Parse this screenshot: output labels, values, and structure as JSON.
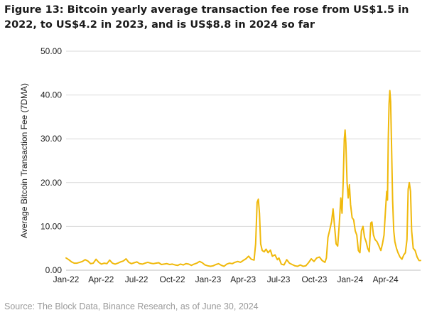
{
  "figure": {
    "title": "Figure 13: Bitcoin yearly average transaction fee rose from US$1.5 in 2022, to US$4.2 in 2023, and is US$8.8 in 2024 so far",
    "source": "Source: The Block Data, Binance Research, as of June 30, 2024"
  },
  "chart_data": {
    "type": "line",
    "title": "",
    "xlabel": "",
    "ylabel": "Average Bitcoin Transaction Fee (7DMA)",
    "ylim": [
      0,
      50
    ],
    "yticks": [
      "0.00",
      "10.00",
      "20.00",
      "30.00",
      "40.00",
      "50.00"
    ],
    "xticks": [
      "Jan-22",
      "Apr-22",
      "Jul-22",
      "Oct-22",
      "Jan-23",
      "Apr-23",
      "Jul-23",
      "Oct-23",
      "Jan-24",
      "Apr-24"
    ],
    "xtick_dates": [
      "2022-01-01",
      "2022-04-01",
      "2022-07-01",
      "2022-10-01",
      "2023-01-01",
      "2023-04-01",
      "2023-07-01",
      "2023-10-01",
      "2024-01-01",
      "2024-04-01"
    ],
    "xlim": [
      "2022-01-01",
      "2024-06-30"
    ],
    "grid": "horizontal",
    "color": "#f0b90b",
    "series": [
      {
        "name": "",
        "points": [
          [
            "2022-01-01",
            2.8
          ],
          [
            "2022-01-08",
            2.4
          ],
          [
            "2022-01-15",
            1.9
          ],
          [
            "2022-01-22",
            1.6
          ],
          [
            "2022-01-29",
            1.6
          ],
          [
            "2022-02-05",
            1.8
          ],
          [
            "2022-02-12",
            2.0
          ],
          [
            "2022-02-19",
            2.4
          ],
          [
            "2022-02-26",
            2.1
          ],
          [
            "2022-03-05",
            1.5
          ],
          [
            "2022-03-12",
            1.6
          ],
          [
            "2022-03-19",
            2.5
          ],
          [
            "2022-03-26",
            1.8
          ],
          [
            "2022-04-02",
            1.4
          ],
          [
            "2022-04-09",
            1.6
          ],
          [
            "2022-04-16",
            1.5
          ],
          [
            "2022-04-23",
            2.3
          ],
          [
            "2022-04-30",
            1.6
          ],
          [
            "2022-05-07",
            1.4
          ],
          [
            "2022-05-14",
            1.6
          ],
          [
            "2022-05-21",
            1.9
          ],
          [
            "2022-05-28",
            2.1
          ],
          [
            "2022-06-04",
            2.6
          ],
          [
            "2022-06-11",
            1.8
          ],
          [
            "2022-06-18",
            1.5
          ],
          [
            "2022-06-25",
            1.7
          ],
          [
            "2022-07-02",
            1.9
          ],
          [
            "2022-07-09",
            1.5
          ],
          [
            "2022-07-16",
            1.4
          ],
          [
            "2022-07-23",
            1.6
          ],
          [
            "2022-07-30",
            1.8
          ],
          [
            "2022-08-06",
            1.6
          ],
          [
            "2022-08-13",
            1.5
          ],
          [
            "2022-08-20",
            1.6
          ],
          [
            "2022-08-27",
            1.7
          ],
          [
            "2022-09-03",
            1.3
          ],
          [
            "2022-09-10",
            1.4
          ],
          [
            "2022-09-17",
            1.5
          ],
          [
            "2022-09-24",
            1.3
          ],
          [
            "2022-10-01",
            1.4
          ],
          [
            "2022-10-08",
            1.2
          ],
          [
            "2022-10-15",
            1.1
          ],
          [
            "2022-10-22",
            1.4
          ],
          [
            "2022-10-29",
            1.2
          ],
          [
            "2022-11-05",
            1.5
          ],
          [
            "2022-11-12",
            1.4
          ],
          [
            "2022-11-19",
            1.1
          ],
          [
            "2022-11-26",
            1.4
          ],
          [
            "2022-12-03",
            1.6
          ],
          [
            "2022-12-10",
            2.0
          ],
          [
            "2022-12-17",
            1.7
          ],
          [
            "2022-12-24",
            1.2
          ],
          [
            "2022-12-31",
            1.0
          ],
          [
            "2023-01-07",
            0.9
          ],
          [
            "2023-01-14",
            1.0
          ],
          [
            "2023-01-21",
            1.3
          ],
          [
            "2023-01-28",
            1.5
          ],
          [
            "2023-02-04",
            1.1
          ],
          [
            "2023-02-11",
            0.9
          ],
          [
            "2023-02-18",
            1.4
          ],
          [
            "2023-02-25",
            1.6
          ],
          [
            "2023-03-04",
            1.5
          ],
          [
            "2023-03-11",
            1.8
          ],
          [
            "2023-03-18",
            2.0
          ],
          [
            "2023-03-25",
            1.8
          ],
          [
            "2023-04-01",
            2.2
          ],
          [
            "2023-04-08",
            2.6
          ],
          [
            "2023-04-15",
            3.2
          ],
          [
            "2023-04-22",
            2.5
          ],
          [
            "2023-04-29",
            2.3
          ],
          [
            "2023-05-03",
            6.0
          ],
          [
            "2023-05-07",
            15.5
          ],
          [
            "2023-05-10",
            16.2
          ],
          [
            "2023-05-13",
            13.0
          ],
          [
            "2023-05-16",
            6.0
          ],
          [
            "2023-05-20",
            4.5
          ],
          [
            "2023-05-25",
            4.2
          ],
          [
            "2023-05-30",
            4.8
          ],
          [
            "2023-06-04",
            4.0
          ],
          [
            "2023-06-10",
            4.6
          ],
          [
            "2023-06-15",
            3.2
          ],
          [
            "2023-06-22",
            3.5
          ],
          [
            "2023-06-28",
            2.4
          ],
          [
            "2023-07-02",
            2.8
          ],
          [
            "2023-07-08",
            1.4
          ],
          [
            "2023-07-15",
            1.2
          ],
          [
            "2023-07-22",
            2.4
          ],
          [
            "2023-07-29",
            1.6
          ],
          [
            "2023-08-05",
            1.3
          ],
          [
            "2023-08-12",
            1.0
          ],
          [
            "2023-08-19",
            0.9
          ],
          [
            "2023-08-26",
            1.2
          ],
          [
            "2023-09-02",
            0.9
          ],
          [
            "2023-09-09",
            1.0
          ],
          [
            "2023-09-16",
            1.7
          ],
          [
            "2023-09-23",
            2.6
          ],
          [
            "2023-09-30",
            2.0
          ],
          [
            "2023-10-07",
            2.8
          ],
          [
            "2023-10-14",
            3.0
          ],
          [
            "2023-10-21",
            2.2
          ],
          [
            "2023-10-28",
            1.8
          ],
          [
            "2023-11-01",
            2.8
          ],
          [
            "2023-11-05",
            7.5
          ],
          [
            "2023-11-09",
            9.0
          ],
          [
            "2023-11-14",
            11.0
          ],
          [
            "2023-11-18",
            14.0
          ],
          [
            "2023-11-22",
            10.0
          ],
          [
            "2023-11-26",
            6.0
          ],
          [
            "2023-11-30",
            5.5
          ],
          [
            "2023-12-04",
            10.5
          ],
          [
            "2023-12-08",
            16.5
          ],
          [
            "2023-12-11",
            13.0
          ],
          [
            "2023-12-14",
            20.0
          ],
          [
            "2023-12-17",
            30.0
          ],
          [
            "2023-12-19",
            32.0
          ],
          [
            "2023-12-21",
            29.0
          ],
          [
            "2023-12-24",
            20.0
          ],
          [
            "2023-12-27",
            16.5
          ],
          [
            "2023-12-30",
            19.5
          ],
          [
            "2024-01-02",
            15.0
          ],
          [
            "2024-01-06",
            12.0
          ],
          [
            "2024-01-10",
            11.5
          ],
          [
            "2024-01-14",
            9.0
          ],
          [
            "2024-01-18",
            8.0
          ],
          [
            "2024-01-22",
            4.5
          ],
          [
            "2024-01-26",
            4.0
          ],
          [
            "2024-01-30",
            9.0
          ],
          [
            "2024-02-03",
            10.0
          ],
          [
            "2024-02-07",
            7.5
          ],
          [
            "2024-02-11",
            6.5
          ],
          [
            "2024-02-15",
            5.0
          ],
          [
            "2024-02-19",
            4.2
          ],
          [
            "2024-02-23",
            10.8
          ],
          [
            "2024-02-26",
            11.0
          ],
          [
            "2024-03-01",
            8.0
          ],
          [
            "2024-03-05",
            7.0
          ],
          [
            "2024-03-10",
            6.5
          ],
          [
            "2024-03-15",
            5.5
          ],
          [
            "2024-03-20",
            4.5
          ],
          [
            "2024-03-24",
            6.0
          ],
          [
            "2024-03-28",
            8.0
          ],
          [
            "2024-04-01",
            14.0
          ],
          [
            "2024-04-04",
            18.0
          ],
          [
            "2024-04-06",
            16.0
          ],
          [
            "2024-04-08",
            30.0
          ],
          [
            "2024-04-10",
            38.0
          ],
          [
            "2024-04-12",
            41.0
          ],
          [
            "2024-04-14",
            38.5
          ],
          [
            "2024-04-16",
            30.0
          ],
          [
            "2024-04-19",
            16.0
          ],
          [
            "2024-04-22",
            9.0
          ],
          [
            "2024-04-25",
            6.5
          ],
          [
            "2024-04-29",
            5.0
          ],
          [
            "2024-05-03",
            4.0
          ],
          [
            "2024-05-08",
            3.0
          ],
          [
            "2024-05-13",
            2.5
          ],
          [
            "2024-05-18",
            3.5
          ],
          [
            "2024-05-22",
            4.0
          ],
          [
            "2024-05-26",
            7.0
          ],
          [
            "2024-05-29",
            18.5
          ],
          [
            "2024-06-01",
            20.0
          ],
          [
            "2024-06-04",
            18.0
          ],
          [
            "2024-06-07",
            9.0
          ],
          [
            "2024-06-11",
            5.0
          ],
          [
            "2024-06-16",
            4.5
          ],
          [
            "2024-06-21",
            3.0
          ],
          [
            "2024-06-26",
            2.2
          ],
          [
            "2024-06-30",
            2.2
          ]
        ]
      }
    ]
  }
}
